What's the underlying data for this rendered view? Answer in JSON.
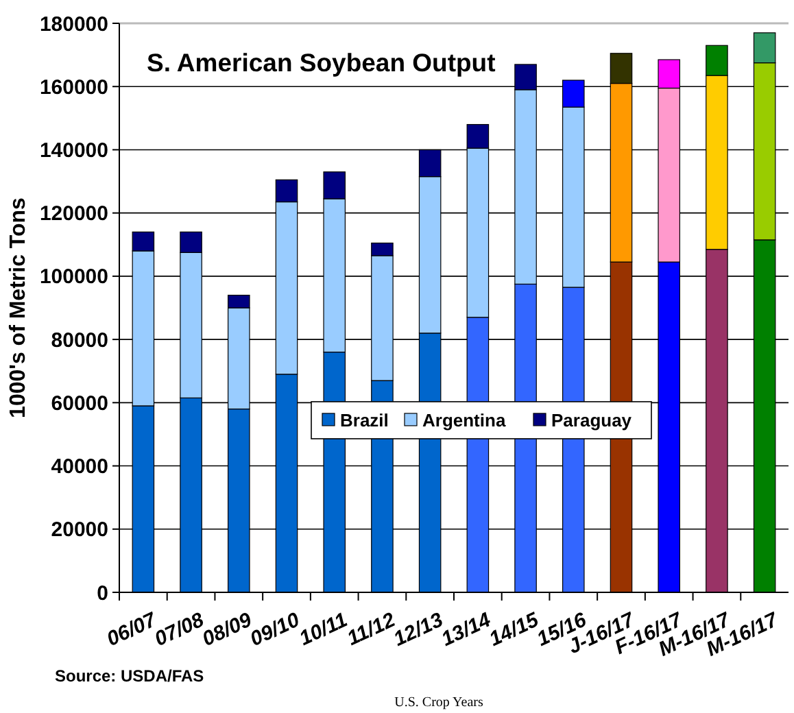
{
  "chart_data": {
    "type": "bar",
    "title": "S. American Soybean Output",
    "xlabel": "U.S. Crop Years",
    "ylabel": "1000's of Metric Tons",
    "annotations": [
      "Source: USDA/FAS"
    ],
    "categories": [
      "06/07",
      "07/08",
      "08/09",
      "09/10",
      "10/11",
      "11/12",
      "12/13",
      "13/14",
      "14/15",
      "15/16",
      "J-16/17",
      "F-16/17",
      "M-16/17",
      "M-16/17"
    ],
    "stacked": true,
    "ylim": [
      0,
      180000
    ],
    "yticks": [
      0,
      20000,
      40000,
      60000,
      80000,
      100000,
      120000,
      140000,
      160000,
      180000
    ],
    "grid": "y",
    "legend": "center",
    "series": [
      {
        "name": "Brazil",
        "color": "#0066cc",
        "colors": [
          "#0066cc",
          "#0066cc",
          "#0066cc",
          "#0066cc",
          "#0066cc",
          "#0066cc",
          "#0066cc",
          "#3366ff",
          "#3366ff",
          "#3366ff",
          "#993300",
          "#0000ff",
          "#993366",
          "#008000"
        ],
        "values": [
          59000,
          61500,
          58000,
          69000,
          76000,
          67000,
          82000,
          87000,
          97500,
          96500,
          104500,
          104500,
          108500,
          111500
        ]
      },
      {
        "name": "Argentina",
        "color": "#99ccff",
        "colors": [
          "#99ccff",
          "#99ccff",
          "#99ccff",
          "#99ccff",
          "#99ccff",
          "#99ccff",
          "#99ccff",
          "#99ccff",
          "#99ccff",
          "#99ccff",
          "#ff9900",
          "#ff99cc",
          "#ffcc00",
          "#99cc00"
        ],
        "values": [
          49000,
          46000,
          32000,
          54500,
          48500,
          39500,
          49500,
          53500,
          61500,
          57000,
          56500,
          55000,
          55000,
          56000
        ]
      },
      {
        "name": "Paraguay",
        "color": "#000080",
        "colors": [
          "#000080",
          "#000080",
          "#000080",
          "#000080",
          "#000080",
          "#000080",
          "#000080",
          "#000080",
          "#000080",
          "#0000ff",
          "#333300",
          "#ff00ff",
          "#008000",
          "#339966"
        ],
        "values": [
          6000,
          6500,
          4000,
          7000,
          8500,
          4000,
          8500,
          7500,
          8000,
          8500,
          9500,
          9000,
          9500,
          9500
        ]
      }
    ]
  }
}
